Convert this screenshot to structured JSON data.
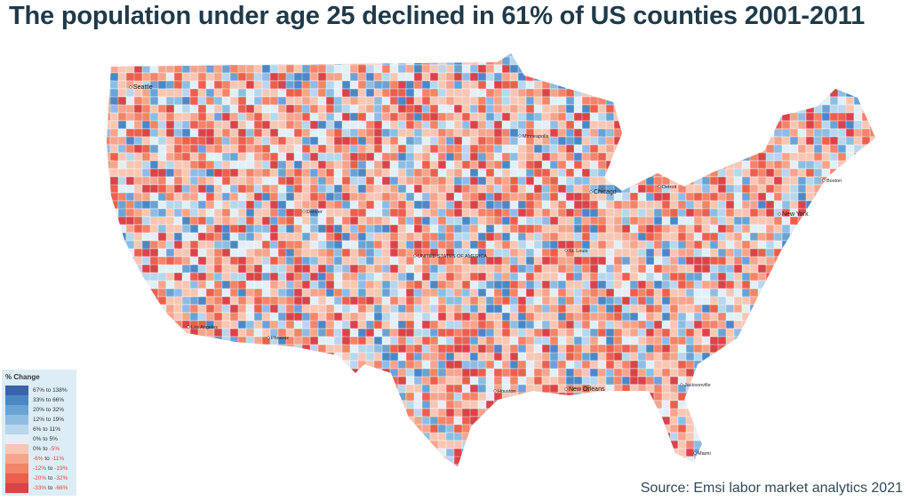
{
  "title": "The population under age 25 declined in 61% of US counties 2001-2011",
  "source": "Source: Emsi labor market analytics 2021",
  "legend": {
    "title": "% Change",
    "items": [
      {
        "a": "67%",
        "b": "138%",
        "color": "#3a64a8",
        "neg": false
      },
      {
        "a": "33%",
        "b": "66%",
        "color": "#4b87c3",
        "neg": false
      },
      {
        "a": "20%",
        "b": "32%",
        "color": "#6aa3d3",
        "neg": false
      },
      {
        "a": "12%",
        "b": "19%",
        "color": "#8fbde1",
        "neg": false
      },
      {
        "a": "6%",
        "b": "11%",
        "color": "#b8d6ec",
        "neg": false
      },
      {
        "a": "0%",
        "b": "5%",
        "color": "#e3eef6",
        "neg": false
      },
      {
        "a": "0%",
        "b": "-5%",
        "color": "#f8c6b4",
        "neg": true
      },
      {
        "a": "-6%",
        "b": "-11%",
        "color": "#f7a48c",
        "neg": true
      },
      {
        "a": "-12%",
        "b": "-19%",
        "color": "#f38369",
        "neg": true
      },
      {
        "a": "-20%",
        "b": "-32%",
        "color": "#eb5f4e",
        "neg": true
      },
      {
        "a": "-33%",
        "b": "-66%",
        "color": "#d9434a",
        "neg": true
      }
    ],
    "connector": "to"
  },
  "map": {
    "declined_share_percent": 61,
    "cities": [
      {
        "name": "Seattle",
        "big": true
      },
      {
        "name": "Chicago",
        "big": true
      },
      {
        "name": "New York",
        "big": true
      },
      {
        "name": "New Orleans",
        "big": true
      },
      {
        "name": "Miami",
        "big": false
      },
      {
        "name": "St. Louis",
        "big": false
      },
      {
        "name": "Detroit",
        "big": false
      },
      {
        "name": "Minneapolis",
        "big": false
      },
      {
        "name": "Jacksonville",
        "big": false
      },
      {
        "name": "Houston",
        "big": false
      },
      {
        "name": "Denver",
        "big": false
      },
      {
        "name": "Phoenix",
        "big": false
      },
      {
        "name": "Los Angeles",
        "big": false
      },
      {
        "name": "Boston",
        "big": false
      },
      {
        "name": "UNITED STATES OF AMERICA",
        "big": false
      }
    ]
  }
}
